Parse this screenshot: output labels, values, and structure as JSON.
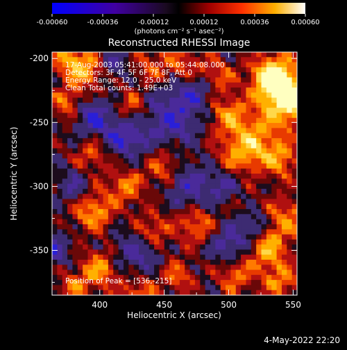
{
  "colorbar": {
    "ticks": [
      "-0.00060",
      "-0.00036",
      "-0.00012",
      "0.00012",
      "0.00036",
      "0.00060"
    ],
    "units_label": "(photons cm⁻² s⁻¹ asec⁻²)"
  },
  "chart_data": {
    "type": "heatmap",
    "title": "Reconstructed RHESSI Image",
    "xlabel": "Heliocentric X (arcsec)",
    "ylabel": "Heliocentric Y (arcsec)",
    "xlim": [
      363,
      553
    ],
    "ylim": [
      -385,
      -195
    ],
    "x_ticks": [
      "400",
      "450",
      "500",
      "550"
    ],
    "y_ticks": [
      "-200",
      "-250",
      "-300",
      "-350"
    ],
    "x_tick_values": [
      400,
      450,
      500,
      550
    ],
    "y_tick_values": [
      -200,
      -250,
      -300,
      -350
    ],
    "color_range": [
      -0.0006,
      0.0006
    ],
    "colormap": [
      "#1a1aff",
      "#5a2aa0",
      "#3a2a6a",
      "#000000",
      "#7a0000",
      "#d01010",
      "#ff6a00",
      "#ffd000",
      "#ffffff"
    ],
    "annotations": [
      "17-Aug-2003 05:41:00.000 to 05:44:08.000",
      "Detectors: 3F 4F 5F 6F 7F 8F, Att 0",
      "Energy Range: 12.0 - 25.0 keV",
      "Clean    Total counts: 1.49E+03"
    ],
    "peak_label": "Position of Peak = [536,-215]",
    "peak_position": [
      536,
      -215
    ]
  },
  "footer": {
    "date": "4-May-2022 22:20"
  }
}
